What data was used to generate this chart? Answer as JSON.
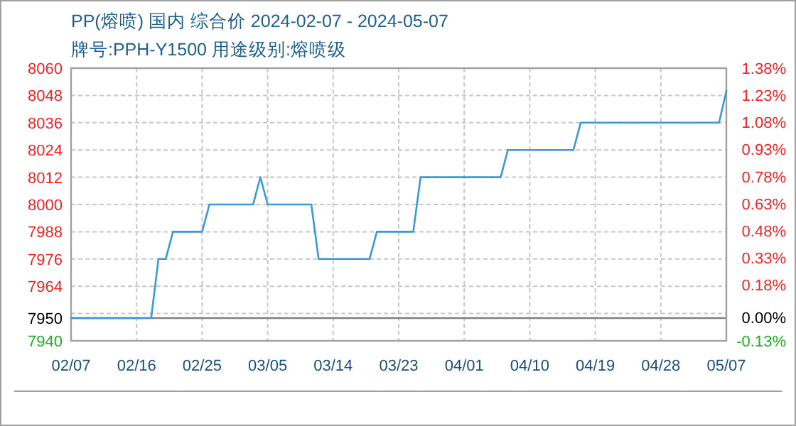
{
  "chart_data": {
    "type": "line",
    "title": "PP(熔喷) 国内 综合价 2024-02-07 - 2024-05-07",
    "subtitle": "牌号:PPH-Y1500 用途级别:熔喷级",
    "x": [
      "2024-02-07",
      "2024-02-18",
      "2024-02-19",
      "2024-02-20",
      "2024-02-21",
      "2024-02-25",
      "2024-02-26",
      "2024-03-03",
      "2024-03-04",
      "2024-03-05",
      "2024-03-11",
      "2024-03-12",
      "2024-03-19",
      "2024-03-20",
      "2024-03-25",
      "2024-03-26",
      "2024-04-06",
      "2024-04-07",
      "2024-04-16",
      "2024-04-17",
      "2024-05-06",
      "2024-05-07"
    ],
    "series": [
      {
        "color": "#3a9ad9",
        "values": [
          7950,
          7950,
          7976,
          7976,
          7988,
          7988,
          8000,
          8000,
          8012,
          8000,
          8000,
          7976,
          7976,
          7988,
          7988,
          8012,
          8012,
          8024,
          8024,
          8036,
          8036,
          8050
        ]
      }
    ],
    "xlim": [
      "2024-02-07",
      "2024-05-07"
    ],
    "xticks": [
      {
        "value": "2024-02-07",
        "label": "02/07"
      },
      {
        "value": "2024-02-16",
        "label": "02/16"
      },
      {
        "value": "2024-02-25",
        "label": "02/25"
      },
      {
        "value": "2024-03-05",
        "label": "03/05"
      },
      {
        "value": "2024-03-14",
        "label": "03/14"
      },
      {
        "value": "2024-03-23",
        "label": "03/23"
      },
      {
        "value": "2024-04-01",
        "label": "04/01"
      },
      {
        "value": "2024-04-10",
        "label": "04/10"
      },
      {
        "value": "2024-04-19",
        "label": "04/19"
      },
      {
        "value": "2024-04-28",
        "label": "04/28"
      },
      {
        "value": "2024-05-07",
        "label": "05/07"
      }
    ],
    "ylim": [
      7940,
      8060
    ],
    "yticks": [
      7940,
      7950,
      {
        "value": 7952,
        "label": null
      },
      7964,
      7976,
      7988,
      8000,
      8012,
      8024,
      8036,
      8048,
      8060
    ],
    "y2lim": [
      -0.13,
      1.38
    ],
    "y2ticks": [
      {
        "value": -0.13,
        "label": "-0.13%"
      },
      {
        "value": 0,
        "label": "0.00%"
      },
      {
        "value": 0.18,
        "label": "0.18%"
      },
      {
        "value": 0.33,
        "label": "0.33%"
      },
      {
        "value": 0.48,
        "label": "0.48%"
      },
      {
        "value": 0.63,
        "label": "0.63%"
      },
      {
        "value": 0.78,
        "label": "0.78%"
      },
      {
        "value": 0.93,
        "label": "0.93%"
      },
      {
        "value": 1.08,
        "label": "1.08%"
      },
      {
        "value": 1.23,
        "label": "1.23%"
      },
      {
        "value": 1.38,
        "label": "1.38%"
      }
    ],
    "ref_lines": [
      {
        "axis": "y",
        "value": 7950,
        "color": "#808080",
        "line_style": "solid"
      }
    ],
    "grid": true,
    "marker": "none",
    "line_style": "solid"
  }
}
